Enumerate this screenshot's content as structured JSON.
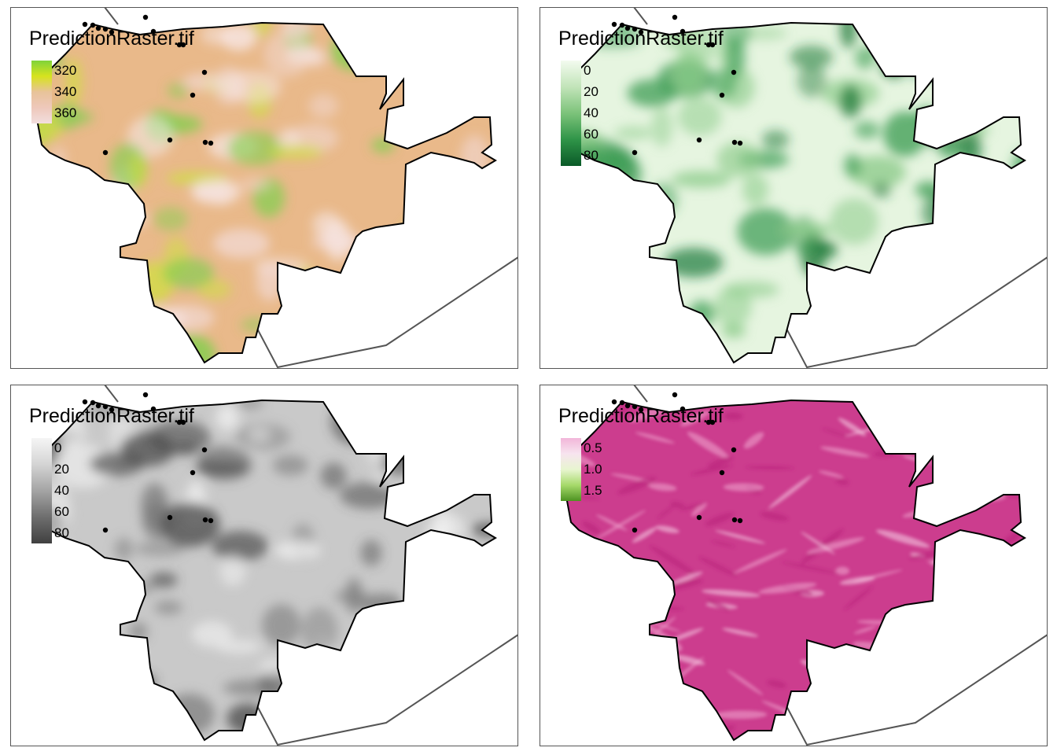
{
  "maps": [
    {
      "id": "elevation",
      "title": "PredictionRaster.tif",
      "legend": {
        "labels": [
          "320",
          "340",
          "360"
        ],
        "colors": [
          "#7fd33a",
          "#d7e31e",
          "#e8c39a",
          "#eec8bb",
          "#f2dede"
        ]
      },
      "fill_base": "#e9b98a",
      "fill_accents": [
        "#7fcf4c",
        "#cde23b",
        "#f2d8d2",
        "#f7e8e8"
      ]
    },
    {
      "id": "percent-green",
      "title": "PredictionRaster.tif",
      "legend": {
        "labels": [
          "0",
          "20",
          "40",
          "60",
          "80"
        ],
        "colors": [
          "#f3fbef",
          "#c2e4b9",
          "#7cc37a",
          "#2f9448",
          "#0a5a28"
        ]
      },
      "fill_base": "#e6f5e0",
      "fill_accents": [
        "#1f7a3a",
        "#3f9e55",
        "#8ccb8a"
      ]
    },
    {
      "id": "percent-gray",
      "title": "PredictionRaster.tif",
      "legend": {
        "labels": [
          "0",
          "20",
          "40",
          "60",
          "80"
        ],
        "colors": [
          "#f5f5f5",
          "#d4d4d4",
          "#a4a4a4",
          "#6e6e6e",
          "#404040"
        ]
      },
      "fill_base": "#c9c9c9",
      "fill_accents": [
        "#4d4d4d",
        "#7a7a7a",
        "#efefef"
      ]
    },
    {
      "id": "ratio-pink",
      "title": "PredictionRaster.tif",
      "legend": {
        "labels": [
          "0.5",
          "1.0",
          "1.5"
        ],
        "colors": [
          "#f2b6d9",
          "#f7e4ef",
          "#e8f5d0",
          "#a6d96a",
          "#4d9221"
        ]
      },
      "fill_base": "#cc3d8e",
      "fill_accents": [
        "#f0a7cf",
        "#f7d4e7",
        "#b8237a"
      ]
    }
  ]
}
